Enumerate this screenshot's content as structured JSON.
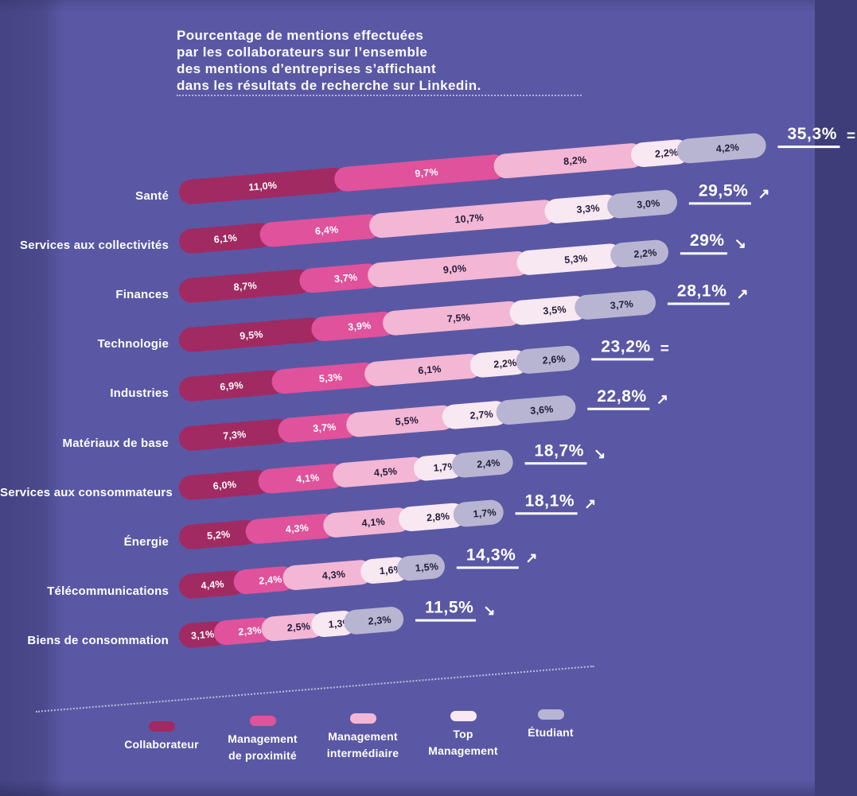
{
  "title": {
    "lines": [
      "Pourcentage de mentions effectuées",
      "par les collaborateurs sur l’ensemble",
      "des mentions d’entreprises s’affichant",
      "dans les résultats de recherche sur Linkedin."
    ]
  },
  "chart_data": {
    "type": "bar",
    "subtype": "horizontal-stacked-tilted-pills",
    "unit": "%",
    "background_color": "#5a58a4",
    "series_names": [
      "Collaborateur",
      "Management de proximité",
      "Management intermédiaire",
      "Top Management",
      "Étudiant"
    ],
    "series_keys": [
      "collaborateur",
      "management-de-proximite",
      "management-intermediaire",
      "top-management",
      "etudiant"
    ],
    "series_colors": [
      "#a12a62",
      "#e0529b",
      "#f3b6d4",
      "#f8e8f2",
      "#b7b5d2"
    ],
    "series_text_colors": [
      "#ffffff",
      "#ffffff",
      "#221c3a",
      "#221c3a",
      "#221c3a"
    ],
    "trend_icons": {
      "up": "↗",
      "down": "↘",
      "equal": "="
    },
    "rows": [
      {
        "label": "Santé",
        "values": [
          11.0,
          9.7,
          8.2,
          2.2,
          4.2
        ],
        "value_labels": [
          "11,0%",
          "9,7%",
          "8,2%",
          "2,2%",
          "4,2%"
        ],
        "total": 35.3,
        "total_label": "35,3%",
        "trend": "equal"
      },
      {
        "label": "Services aux collectivités",
        "values": [
          6.1,
          6.4,
          10.7,
          3.3,
          3.0
        ],
        "value_labels": [
          "6,1%",
          "6,4%",
          "10,7%",
          "3,3%",
          "3,0%"
        ],
        "total": 29.5,
        "total_label": "29,5%",
        "trend": "up"
      },
      {
        "label": "Finances",
        "values": [
          8.7,
          3.7,
          9.0,
          5.3,
          2.2
        ],
        "value_labels": [
          "8,7%",
          "3,7%",
          "9,0%",
          "5,3%",
          "2,2%"
        ],
        "total": 29.0,
        "total_label": "29%",
        "trend": "down"
      },
      {
        "label": "Technologie",
        "values": [
          9.5,
          3.9,
          7.5,
          3.5,
          3.7
        ],
        "value_labels": [
          "9,5%",
          "3,9%",
          "7,5%",
          "3,5%",
          "3,7%"
        ],
        "total": 28.1,
        "total_label": "28,1%",
        "trend": "up"
      },
      {
        "label": "Industries",
        "values": [
          6.9,
          5.3,
          6.1,
          2.2,
          2.6
        ],
        "value_labels": [
          "6,9%",
          "5,3%",
          "6,1%",
          "2,2%",
          "2,6%"
        ],
        "total": 23.2,
        "total_label": "23,2%",
        "trend": "equal"
      },
      {
        "label": "Matériaux de base",
        "values": [
          7.3,
          3.7,
          5.5,
          2.7,
          3.6
        ],
        "value_labels": [
          "7,3%",
          "3,7%",
          "5,5%",
          "2,7%",
          "3,6%"
        ],
        "total": 22.8,
        "total_label": "22,8%",
        "trend": "up"
      },
      {
        "label": "Services aux consommateurs",
        "values": [
          6.0,
          4.1,
          4.5,
          1.7,
          2.4
        ],
        "value_labels": [
          "6,0%",
          "4,1%",
          "4,5%",
          "1,7%",
          "2,4%"
        ],
        "total": 18.7,
        "total_label": "18,7%",
        "trend": "down"
      },
      {
        "label": "Énergie",
        "values": [
          5.2,
          4.3,
          4.1,
          2.8,
          1.7
        ],
        "value_labels": [
          "5,2%",
          "4,3%",
          "4,1%",
          "2,8%",
          "1,7%"
        ],
        "total": 18.1,
        "total_label": "18,1%",
        "trend": "up"
      },
      {
        "label": "Télécommunications",
        "values": [
          4.4,
          2.4,
          4.3,
          1.6,
          1.5
        ],
        "value_labels": [
          "4,4%",
          "2,4%",
          "4,3%",
          "1,6%",
          "1,5%"
        ],
        "total": 14.3,
        "total_label": "14,3%",
        "trend": "up"
      },
      {
        "label": "Biens de consommation",
        "values": [
          3.1,
          2.3,
          2.5,
          1.3,
          2.3
        ],
        "value_labels": [
          "3,1%",
          "2,3%",
          "2,5%",
          "1,3%",
          "2,3%"
        ],
        "total": 11.5,
        "total_label": "11,5%",
        "trend": "down"
      }
    ],
    "legend": [
      {
        "lines": [
          "Collaborateur"
        ],
        "color": "#a12a62"
      },
      {
        "lines": [
          "Management",
          "de proximité"
        ],
        "color": "#e0529b"
      },
      {
        "lines": [
          "Management",
          "intermédiaire"
        ],
        "color": "#f3b6d4"
      },
      {
        "lines": [
          "Top",
          "Management"
        ],
        "color": "#f8e8f2"
      },
      {
        "lines": [
          "Étudiant"
        ],
        "color": "#b7b5d2"
      }
    ]
  }
}
